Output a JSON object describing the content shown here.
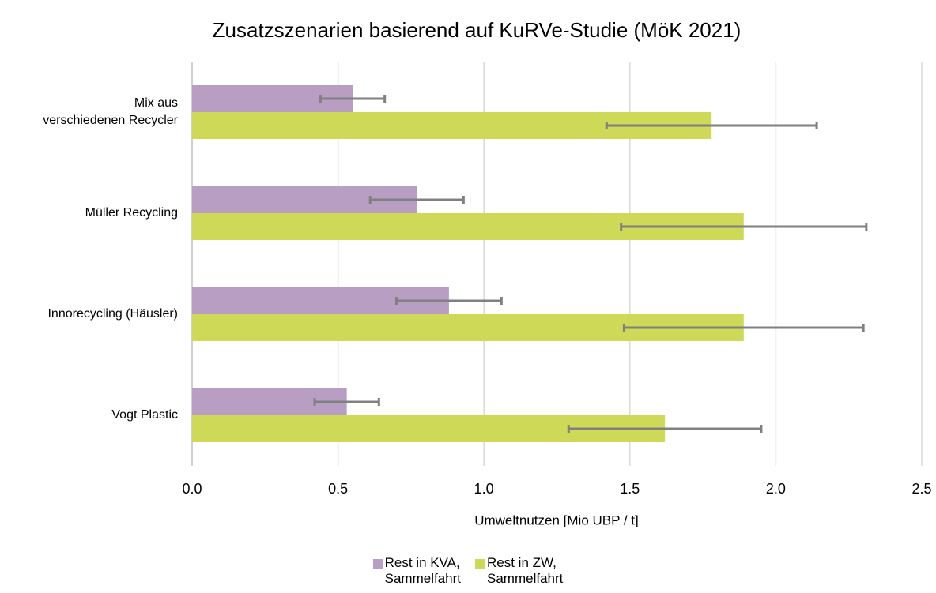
{
  "chart_data": {
    "type": "bar",
    "orientation": "horizontal",
    "title": "Zusatzszenarien basierend auf KuRVe-Studie (MöK 2021)",
    "x_label": "Umweltnutzen [Mio UBP / t]",
    "categories": [
      "Mix aus\nverschiedenen Recycler",
      "Müller Recycling",
      "Innorecycling (Häusler)",
      "Vogt Plastic"
    ],
    "series": [
      {
        "name": "Rest in KVA,\nSammelfahrt",
        "color": "#b89ec3",
        "values": [
          0.55,
          0.77,
          0.88,
          0.53
        ],
        "errors": [
          0.11,
          0.16,
          0.18,
          0.11
        ]
      },
      {
        "name": "Rest in ZW,\nSammelfahrt",
        "color": "#cdd957",
        "values": [
          1.78,
          1.89,
          1.89,
          1.62
        ],
        "errors": [
          0.36,
          0.42,
          0.41,
          0.33
        ]
      }
    ],
    "error_color": "#808080",
    "xlim": [
      0,
      2.5
    ],
    "xticks": [
      {
        "value": 0,
        "label": "0.0"
      },
      0.5,
      {
        "value": 1,
        "label": "1.0"
      },
      1.5,
      {
        "value": 2,
        "label": "2.0"
      },
      2.5
    ],
    "grid": true,
    "legend": "bottom"
  }
}
